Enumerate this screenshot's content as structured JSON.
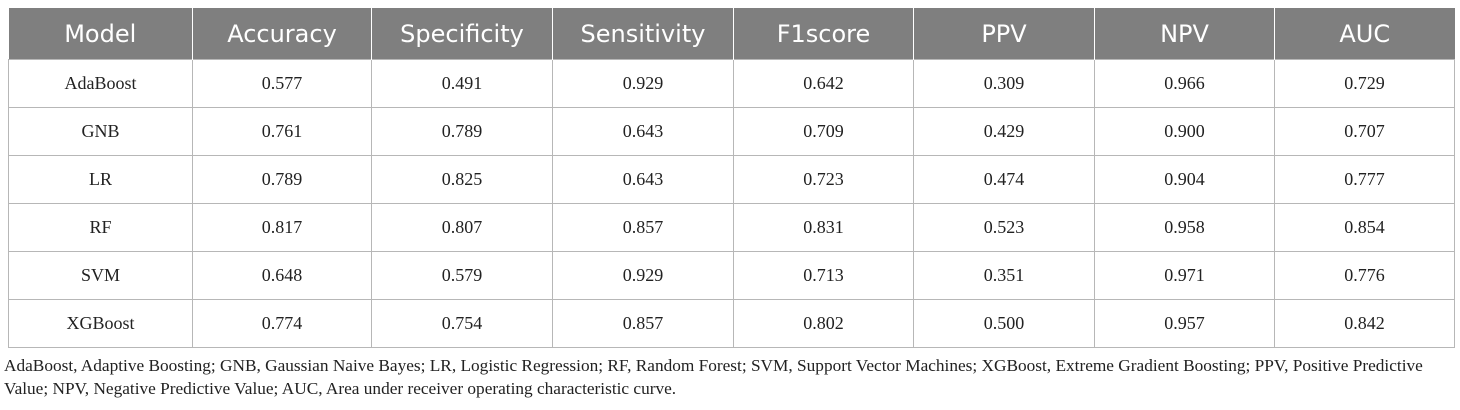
{
  "table": {
    "headers": [
      "Model",
      "Accuracy",
      "Specificity",
      "Sensitivity",
      "F1score",
      "PPV",
      "NPV",
      "AUC"
    ],
    "rows": [
      [
        "AdaBoost",
        "0.577",
        "0.491",
        "0.929",
        "0.642",
        "0.309",
        "0.966",
        "0.729"
      ],
      [
        "GNB",
        "0.761",
        "0.789",
        "0.643",
        "0.709",
        "0.429",
        "0.900",
        "0.707"
      ],
      [
        "LR",
        "0.789",
        "0.825",
        "0.643",
        "0.723",
        "0.474",
        "0.904",
        "0.777"
      ],
      [
        "RF",
        "0.817",
        "0.807",
        "0.857",
        "0.831",
        "0.523",
        "0.958",
        "0.854"
      ],
      [
        "SVM",
        "0.648",
        "0.579",
        "0.929",
        "0.713",
        "0.351",
        "0.971",
        "0.776"
      ],
      [
        "XGBoost",
        "0.774",
        "0.754",
        "0.857",
        "0.802",
        "0.500",
        "0.957",
        "0.842"
      ]
    ]
  },
  "footnote": "AdaBoost, Adaptive Boosting; GNB, Gaussian Naive Bayes; LR, Logistic Regression; RF, Random Forest; SVM, Support Vector Machines; XGBoost, Extreme Gradient Boosting; PPV, Positive Predictive Value; NPV, Negative Predictive Value; AUC, Area under receiver operating characteristic curve.",
  "colors": {
    "header_bg": "#7f7f7f",
    "header_text": "#ffffff",
    "grid": "#b7b7b7"
  }
}
